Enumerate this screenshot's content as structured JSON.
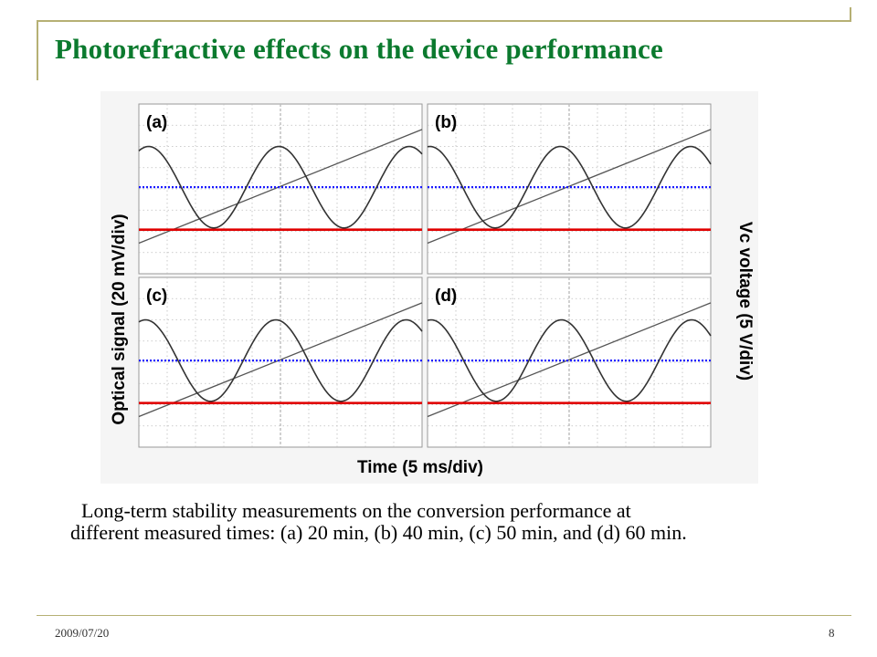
{
  "slide": {
    "title": "Photorefractive effects on the device performance",
    "caption_line1": "Long-term stability measurements on the conversion performance at",
    "caption_line2": "different measured times: (a) 20 min, (b) 40 min, (c) 50 min, and (d) 60 min.",
    "footer_date": "2009/07/20",
    "page_number": "8"
  },
  "figure": {
    "y_axis_label": "Optical signal (20 mV/div)",
    "y2_axis_label": "Vc voltage (5 V/div)",
    "x_axis_label": "Time (5 ms/div)",
    "panels": [
      {
        "label": "(a)",
        "sine_phase": 0.0
      },
      {
        "label": "(b)",
        "sine_phase": 0.35
      },
      {
        "label": "(c)",
        "sine_phase": 0.15
      },
      {
        "label": "(d)",
        "sine_phase": 0.3
      }
    ],
    "colors": {
      "sine": "#333333",
      "ramp": "#555555",
      "blue_dotted": "#1a1aff",
      "red_line": "#e00000",
      "grid": "#bdbdbd"
    }
  }
}
